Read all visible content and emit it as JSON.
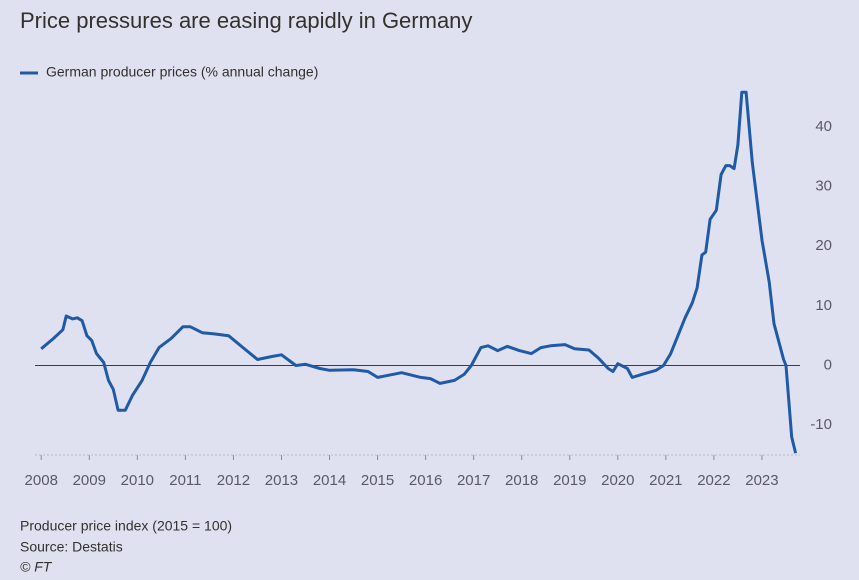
{
  "chart_data": {
    "type": "line",
    "title": "Price pressures are easing rapidly in Germany",
    "series": [
      {
        "name": "German producer prices (% annual change)",
        "color": "#1f5aa6",
        "x": [
          2008.0,
          2008.25,
          2008.45,
          2008.52,
          2008.65,
          2008.75,
          2008.85,
          2008.95,
          2009.05,
          2009.15,
          2009.3,
          2009.4,
          2009.5,
          2009.6,
          2009.75,
          2009.9,
          2010.1,
          2010.27,
          2010.45,
          2010.7,
          2010.95,
          2011.1,
          2011.35,
          2011.6,
          2011.9,
          2012.2,
          2012.5,
          2012.8,
          2013.0,
          2013.3,
          2013.5,
          2013.8,
          2014.0,
          2014.5,
          2014.8,
          2015.0,
          2015.5,
          2015.9,
          2016.1,
          2016.3,
          2016.6,
          2016.8,
          2016.95,
          2017.15,
          2017.3,
          2017.5,
          2017.7,
          2017.95,
          2018.2,
          2018.4,
          2018.6,
          2018.9,
          2019.1,
          2019.4,
          2019.6,
          2019.8,
          2019.9,
          2020.0,
          2020.2,
          2020.3,
          2020.5,
          2020.8,
          2020.95,
          2021.1,
          2021.25,
          2021.4,
          2021.55,
          2021.65,
          2021.75,
          2021.83,
          2021.92,
          2022.05,
          2022.15,
          2022.25,
          2022.33,
          2022.42,
          2022.5,
          2022.58,
          2022.67,
          2022.8,
          2023.0,
          2023.15,
          2023.25,
          2023.45,
          2023.5,
          2023.62,
          2023.7
        ],
        "values": [
          2.8,
          4.5,
          6,
          8.3,
          7.8,
          8,
          7.5,
          5,
          4.2,
          2,
          0.5,
          -2.5,
          -4,
          -7.5,
          -7.5,
          -5,
          -2.5,
          0.5,
          3,
          4.5,
          6.5,
          6.5,
          5.5,
          5.3,
          5,
          3,
          1,
          1.5,
          1.8,
          0,
          0.2,
          -0.5,
          -0.8,
          -0.7,
          -1,
          -2,
          -1.2,
          -2,
          -2.2,
          -3,
          -2.5,
          -1.5,
          0,
          3,
          3.3,
          2.5,
          3.2,
          2.5,
          2,
          3,
          3.3,
          3.5,
          2.8,
          2.6,
          1.2,
          -0.5,
          -1,
          0.3,
          -0.5,
          -2,
          -1.5,
          -0.8,
          0,
          2,
          5,
          8,
          10.5,
          13,
          18.5,
          19,
          24.5,
          26,
          32,
          33.5,
          33.5,
          33,
          37,
          45.8,
          45.8,
          34,
          21,
          14,
          7,
          1,
          0,
          -12,
          -14.7
        ]
      }
    ],
    "xlim": [
      2007.87,
      2024.0
    ],
    "xticks": [
      2008,
      2009,
      2010,
      2011,
      2012,
      2013,
      2014,
      2015,
      2016,
      2017,
      2018,
      2019,
      2020,
      2021,
      2022,
      2023
    ],
    "ylim": [
      -15,
      46
    ],
    "yticks": [
      -10,
      0,
      10,
      20,
      30,
      40
    ],
    "zero_line_color": "#cc0000",
    "notes": [
      "Producer price index (2015 = 100)",
      "Source: Destatis",
      "© FT"
    ]
  }
}
